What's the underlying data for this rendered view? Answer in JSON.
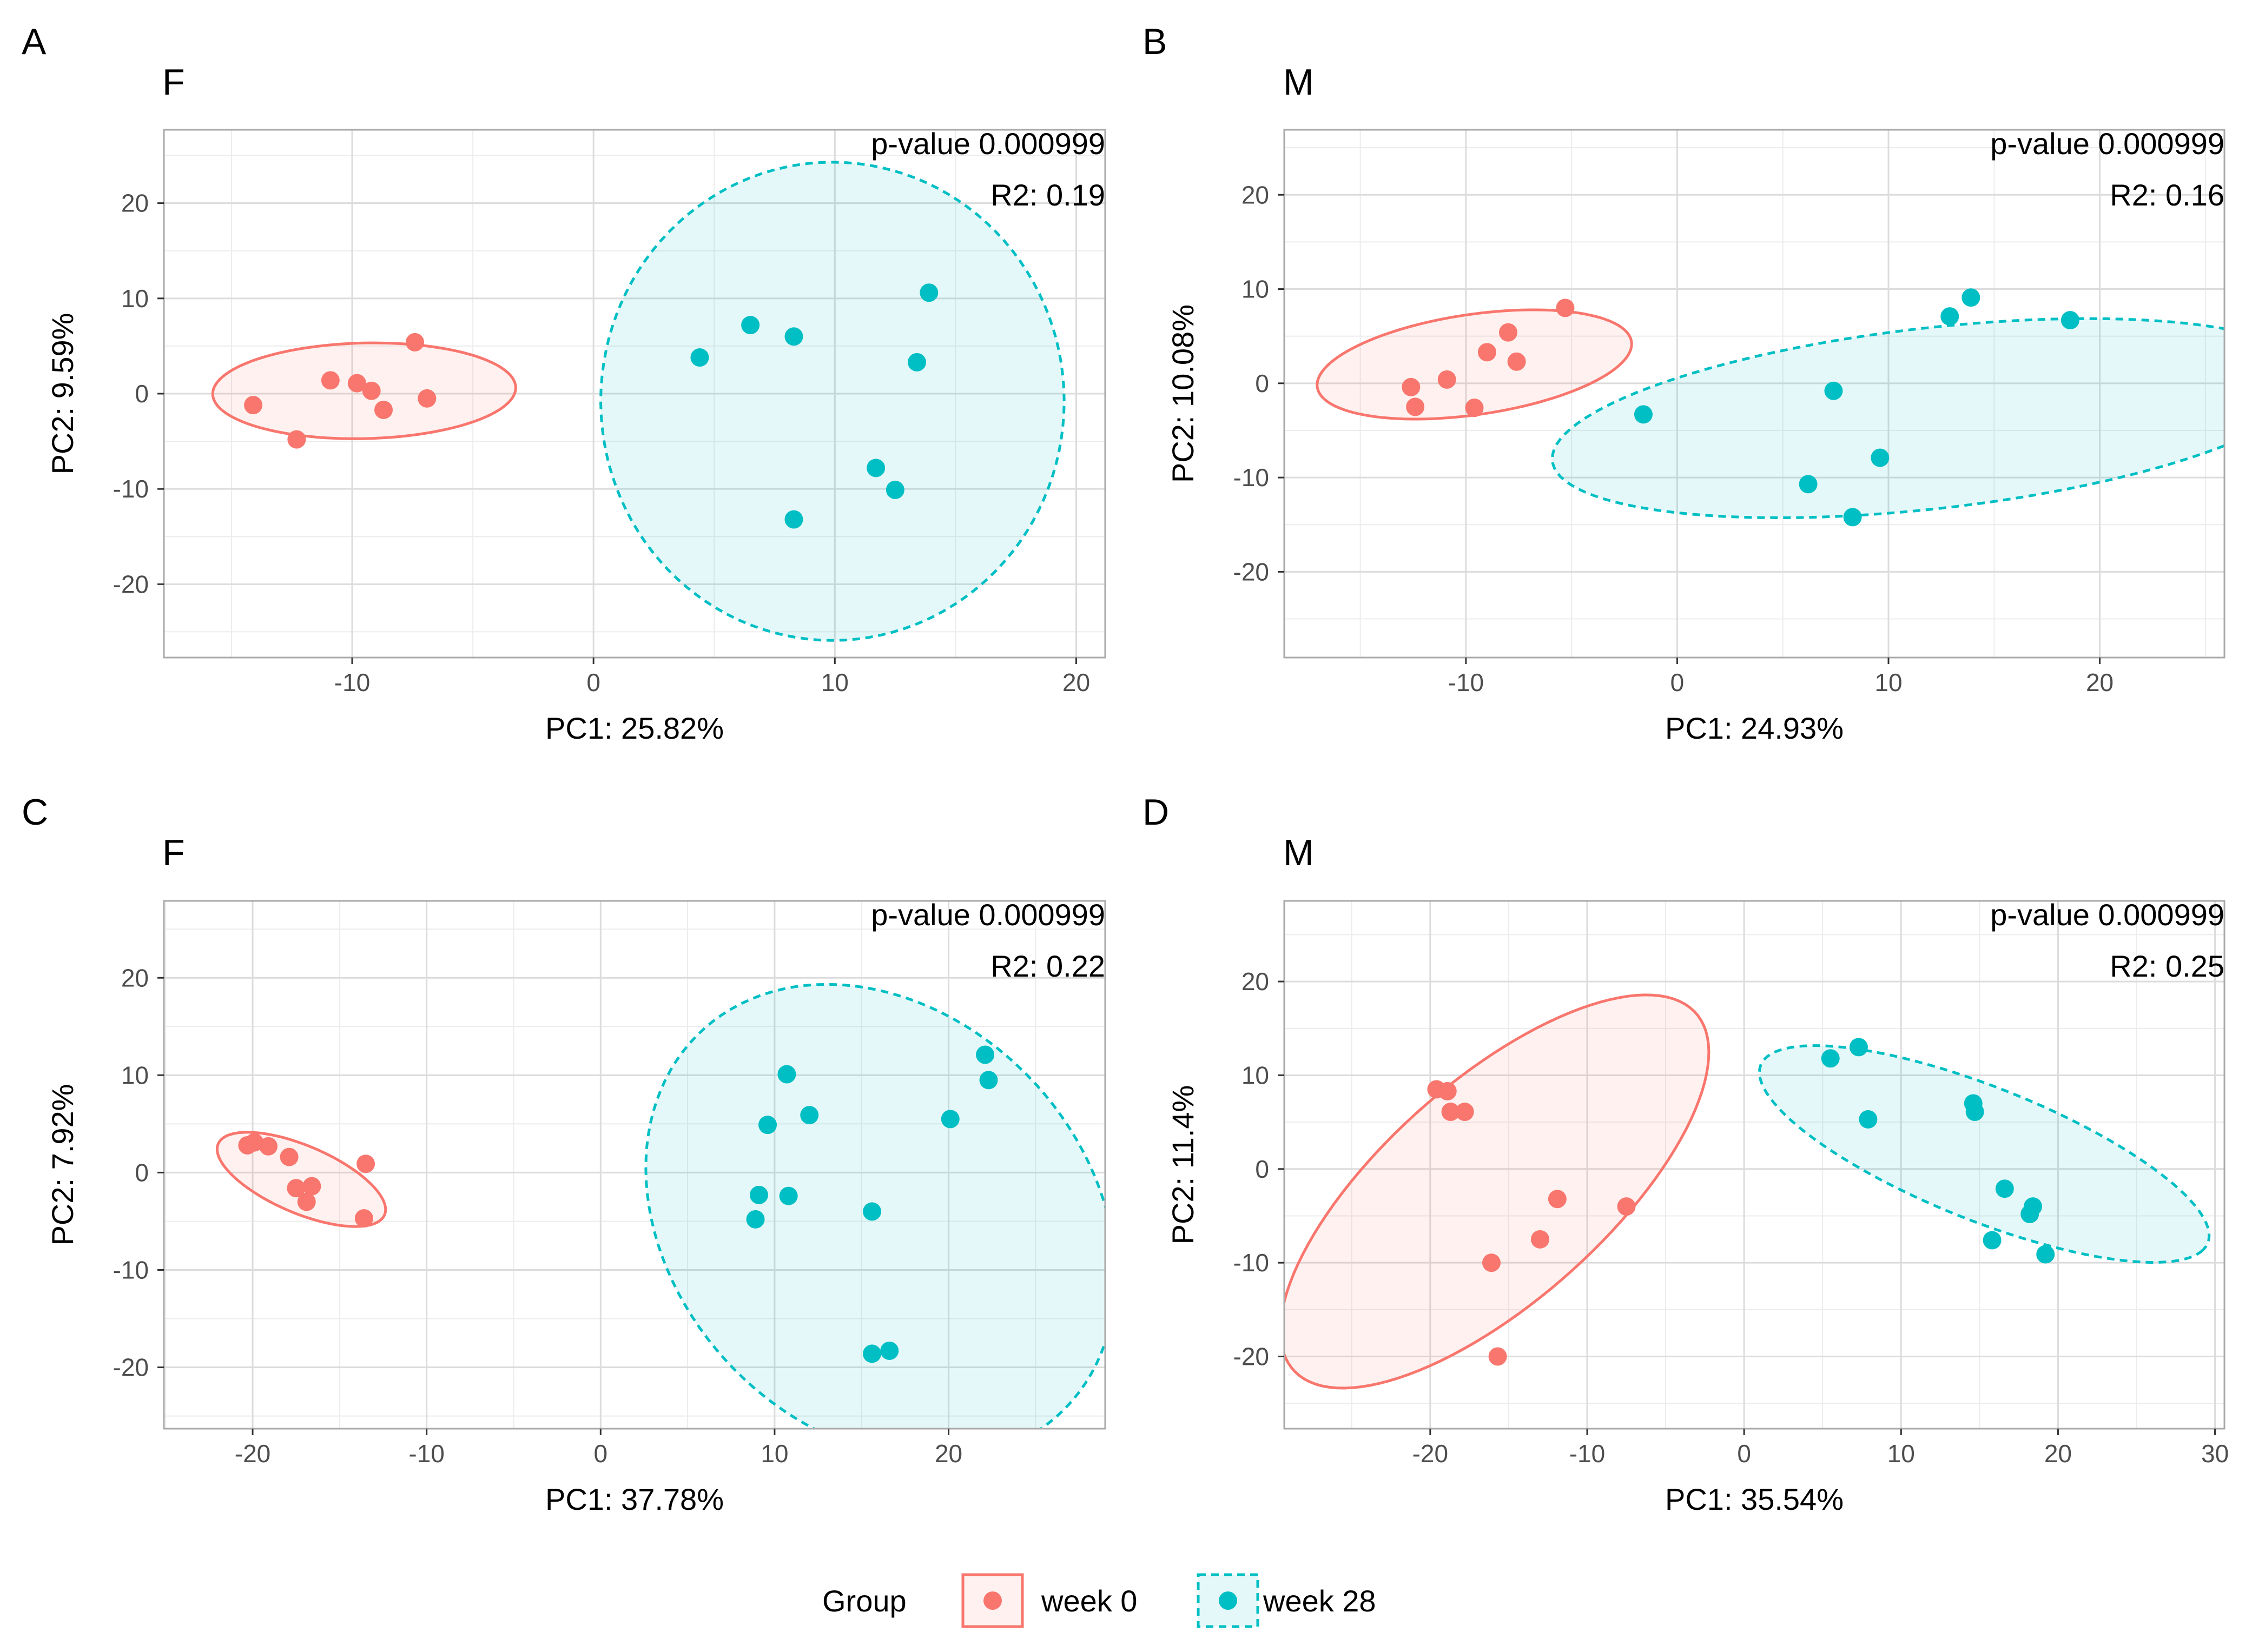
{
  "legend": {
    "title": "Group",
    "entries": [
      {
        "label": "week 0",
        "color": "#F8766D",
        "line": "solid"
      },
      {
        "label": "week 28",
        "color": "#00BFC4",
        "line": "dotted"
      }
    ]
  },
  "chart_data": [
    {
      "type": "scatter",
      "panel_letter": "A",
      "title": "F",
      "xlabel": "PC1: 25.82%",
      "ylabel": "PC2: 9.59%",
      "xlim": [
        -17.8,
        21.2
      ],
      "ylim": [
        -27.7,
        27.7
      ],
      "xticks": [
        -10,
        0,
        10,
        20
      ],
      "yticks": [
        -20,
        -10,
        0,
        10,
        20
      ],
      "xtick_labels": [
        "-10",
        "0",
        "10",
        "20"
      ],
      "ytick_labels": [
        "-20",
        "-10",
        "0",
        "10",
        "20"
      ],
      "annotations": [
        "p-value 0.000999",
        "R2: 0.19"
      ],
      "series": [
        {
          "name": "week 0",
          "color": "#F8766D",
          "points": [
            [
              -14.1,
              -1.2
            ],
            [
              -12.3,
              -4.8
            ],
            [
              -10.9,
              1.4
            ],
            [
              -9.8,
              1.1
            ],
            [
              -9.2,
              0.3
            ],
            [
              -8.7,
              -1.7
            ],
            [
              -7.4,
              5.4
            ],
            [
              -6.9,
              -0.5
            ]
          ],
          "ellipse": {
            "cx": -9.5,
            "cy": 0.3,
            "rx": 6.3,
            "ry": 5.0,
            "angle_deg": 8
          }
        },
        {
          "name": "week 28",
          "color": "#00BFC4",
          "points": [
            [
              4.4,
              3.8
            ],
            [
              6.5,
              7.2
            ],
            [
              8.3,
              6.0
            ],
            [
              8.3,
              -13.2
            ],
            [
              11.7,
              -7.8
            ],
            [
              12.5,
              -10.1
            ],
            [
              13.4,
              3.3
            ],
            [
              13.9,
              10.6
            ]
          ],
          "ellipse": {
            "cx": 9.9,
            "cy": -0.8,
            "rx": 9.6,
            "ry": 25.1,
            "angle_deg": 0
          }
        }
      ]
    },
    {
      "type": "scatter",
      "panel_letter": "B",
      "title": "M",
      "xlabel": "PC1: 24.93%",
      "ylabel": "PC2: 10.08%",
      "xlim": [
        -18.6,
        25.9
      ],
      "ylim": [
        -29.1,
        26.9
      ],
      "xticks": [
        -10,
        0,
        10,
        20
      ],
      "yticks": [
        -20,
        -10,
        0,
        10,
        20
      ],
      "xtick_labels": [
        "-10",
        "0",
        "10",
        "20"
      ],
      "ytick_labels": [
        "-20",
        "-10",
        "0",
        "10",
        "20"
      ],
      "annotations": [
        "p-value 0.000999",
        "R2: 0.16"
      ],
      "series": [
        {
          "name": "week 0",
          "color": "#F8766D",
          "points": [
            [
              -12.6,
              -0.4
            ],
            [
              -12.4,
              -2.5
            ],
            [
              -10.9,
              0.4
            ],
            [
              -9.6,
              -2.6
            ],
            [
              -9.0,
              3.3
            ],
            [
              -8.0,
              5.4
            ],
            [
              -7.6,
              2.3
            ],
            [
              -5.3,
              8.0
            ]
          ],
          "ellipse": {
            "cx": -9.6,
            "cy": 2.0,
            "rx": 8.0,
            "ry": 5.0,
            "angle_deg": 28
          }
        },
        {
          "name": "week 28",
          "color": "#00BFC4",
          "points": [
            [
              -1.6,
              -3.3
            ],
            [
              6.2,
              -10.7
            ],
            [
              7.4,
              -0.8
            ],
            [
              8.3,
              -14.2
            ],
            [
              9.6,
              -7.9
            ],
            [
              12.9,
              7.1
            ],
            [
              13.9,
              9.1
            ],
            [
              18.6,
              6.7
            ]
          ],
          "ellipse": {
            "cx": 12.1,
            "cy": -3.7,
            "rx": 18.7,
            "ry": 9.3,
            "angle_deg": 18
          }
        }
      ]
    },
    {
      "type": "scatter",
      "panel_letter": "C",
      "title": "F",
      "xlabel": "PC1: 37.78%",
      "ylabel": "PC2: 7.92%",
      "xlim": [
        -25.1,
        29.0
      ],
      "ylim": [
        -26.3,
        27.9
      ],
      "xticks": [
        -20,
        -10,
        0,
        10,
        20
      ],
      "yticks": [
        -20,
        -10,
        0,
        10,
        20
      ],
      "xtick_labels": [
        "-20",
        "-10",
        "0",
        "10",
        "20"
      ],
      "ytick_labels": [
        "-20",
        "-10",
        "0",
        "10",
        "20"
      ],
      "annotations": [
        "p-value 0.000999",
        "R2: 0.22"
      ],
      "series": [
        {
          "name": "week 0",
          "color": "#F8766D",
          "points": [
            [
              -20.3,
              2.8
            ],
            [
              -19.9,
              3.1
            ],
            [
              -19.1,
              2.7
            ],
            [
              -17.9,
              1.6
            ],
            [
              -17.5,
              -1.6
            ],
            [
              -16.9,
              -3.0
            ],
            [
              -16.6,
              -1.4
            ],
            [
              -13.6,
              -4.7
            ],
            [
              -13.5,
              0.9
            ]
          ],
          "ellipse": {
            "cx": -17.2,
            "cy": -0.7,
            "rx": 6.2,
            "ry": 2.9,
            "angle_deg": -45
          }
        },
        {
          "name": "week 28",
          "color": "#00BFC4",
          "points": [
            [
              8.9,
              -4.8
            ],
            [
              9.1,
              -2.3
            ],
            [
              9.6,
              4.9
            ],
            [
              10.7,
              10.1
            ],
            [
              10.8,
              -2.4
            ],
            [
              12.0,
              5.9
            ],
            [
              15.6,
              -4.0
            ],
            [
              15.6,
              -18.6
            ],
            [
              16.6,
              -18.3
            ],
            [
              20.1,
              5.5
            ],
            [
              22.1,
              12.1
            ],
            [
              22.3,
              9.5
            ]
          ],
          "ellipse": {
            "cx": 16.1,
            "cy": -5.1,
            "rx": 13.0,
            "ry": 24.7,
            "angle_deg": 10
          }
        }
      ]
    },
    {
      "type": "scatter",
      "panel_letter": "D",
      "title": "M",
      "xlabel": "PC1: 35.54%",
      "ylabel": "PC2: 11.4%",
      "xlim": [
        -29.3,
        30.6
      ],
      "ylim": [
        -27.7,
        28.6
      ],
      "xticks": [
        -20,
        -10,
        0,
        10,
        20,
        30
      ],
      "yticks": [
        -20,
        -10,
        0,
        10,
        20
      ],
      "xtick_labels": [
        "-20",
        "-10",
        "0",
        "10",
        "20",
        "30"
      ],
      "ytick_labels": [
        "-20",
        "-10",
        "0",
        "10",
        "20"
      ],
      "annotations": [
        "p-value 0.000999",
        "R2: 0.25"
      ],
      "series": [
        {
          "name": "week 0",
          "color": "#F8766D",
          "points": [
            [
              -19.6,
              8.5
            ],
            [
              -18.9,
              8.3
            ],
            [
              -18.7,
              6.1
            ],
            [
              -17.8,
              6.1
            ],
            [
              -16.1,
              -10.0
            ],
            [
              -15.7,
              -20.0
            ],
            [
              -13.0,
              -7.5
            ],
            [
              -11.9,
              -3.2
            ],
            [
              -7.5,
              -4.0
            ]
          ],
          "ellipse": {
            "cx": -15.9,
            "cy": -2.4,
            "rx": 23.5,
            "ry": 8.6,
            "angle_deg": 61
          }
        },
        {
          "name": "week 28",
          "color": "#00BFC4",
          "points": [
            [
              5.5,
              11.8
            ],
            [
              7.3,
              13.0
            ],
            [
              7.9,
              5.3
            ],
            [
              14.6,
              7.0
            ],
            [
              14.7,
              6.1
            ],
            [
              15.8,
              -7.6
            ],
            [
              16.6,
              -2.1
            ],
            [
              18.2,
              -4.8
            ],
            [
              18.4,
              -4.0
            ],
            [
              19.2,
              -9.1
            ]
          ],
          "ellipse": {
            "cx": 15.3,
            "cy": 1.6,
            "rx": 17.3,
            "ry": 6.3,
            "angle_deg": -37
          }
        }
      ]
    }
  ]
}
